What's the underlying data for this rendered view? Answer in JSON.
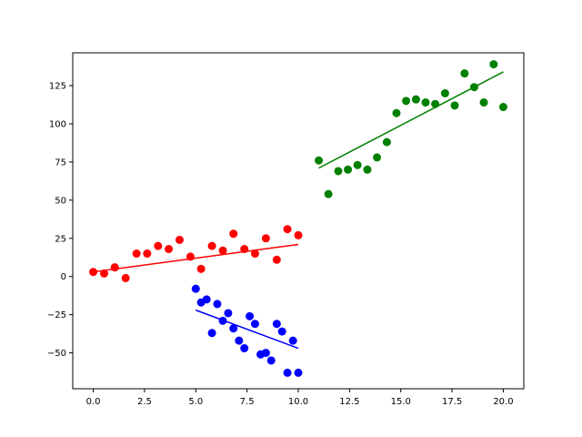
{
  "chart_data": {
    "type": "scatter",
    "title": "",
    "xlabel": "",
    "ylabel": "",
    "xlim": [
      -1.0,
      21.0
    ],
    "ylim": [
      -73.5,
      146.5
    ],
    "xticks": [
      0.0,
      2.5,
      5.0,
      7.5,
      10.0,
      12.5,
      15.0,
      17.5,
      20.0
    ],
    "xtick_labels": [
      "0.0",
      "2.5",
      "5.0",
      "7.5",
      "10.0",
      "12.5",
      "15.0",
      "17.5",
      "20.0"
    ],
    "yticks": [
      -50,
      -25,
      0,
      25,
      50,
      75,
      100,
      125
    ],
    "ytick_labels": [
      "−50",
      "−25",
      "0",
      "25",
      "50",
      "75",
      "100",
      "125"
    ],
    "grid": false,
    "series": [
      {
        "color": "#ff0000",
        "points": [
          [
            0.0,
            3
          ],
          [
            0.53,
            2
          ],
          [
            1.05,
            6
          ],
          [
            1.58,
            -1
          ],
          [
            2.11,
            15
          ],
          [
            2.63,
            15
          ],
          [
            3.16,
            20
          ],
          [
            3.68,
            18
          ],
          [
            4.21,
            24
          ],
          [
            4.74,
            13
          ],
          [
            5.26,
            5
          ],
          [
            5.79,
            20
          ],
          [
            6.32,
            17
          ],
          [
            6.84,
            28
          ],
          [
            7.37,
            18
          ],
          [
            7.89,
            15
          ],
          [
            8.42,
            25
          ],
          [
            8.95,
            11
          ],
          [
            9.47,
            31
          ],
          [
            10.0,
            27
          ]
        ],
        "fit": [
          [
            0.0,
            3
          ],
          [
            10.0,
            21
          ]
        ]
      },
      {
        "color": "#0000ff",
        "points": [
          [
            5.0,
            -8
          ],
          [
            5.26,
            -17
          ],
          [
            5.53,
            -15
          ],
          [
            5.79,
            -37
          ],
          [
            6.05,
            -18
          ],
          [
            6.32,
            -29
          ],
          [
            6.58,
            -24
          ],
          [
            6.84,
            -34
          ],
          [
            7.11,
            -42
          ],
          [
            7.37,
            -47
          ],
          [
            7.63,
            -26
          ],
          [
            7.89,
            -31
          ],
          [
            8.16,
            -51
          ],
          [
            8.42,
            -50
          ],
          [
            8.68,
            -55
          ],
          [
            8.95,
            -31
          ],
          [
            9.21,
            -36
          ],
          [
            9.47,
            -63
          ],
          [
            9.74,
            -42
          ],
          [
            10.0,
            -63
          ]
        ],
        "fit": [
          [
            5.0,
            -22
          ],
          [
            10.0,
            -47
          ]
        ]
      },
      {
        "color": "#008000",
        "points": [
          [
            11.0,
            76
          ],
          [
            11.47,
            54
          ],
          [
            11.95,
            69
          ],
          [
            12.42,
            70
          ],
          [
            12.89,
            73
          ],
          [
            13.37,
            70
          ],
          [
            13.84,
            78
          ],
          [
            14.32,
            88
          ],
          [
            14.79,
            107
          ],
          [
            15.26,
            115
          ],
          [
            15.74,
            116
          ],
          [
            16.21,
            114
          ],
          [
            16.68,
            113
          ],
          [
            17.16,
            120
          ],
          [
            17.63,
            112
          ],
          [
            18.11,
            133
          ],
          [
            18.58,
            124
          ],
          [
            19.05,
            114
          ],
          [
            19.53,
            139
          ],
          [
            20.0,
            111
          ]
        ],
        "fit": [
          [
            11.0,
            71
          ],
          [
            20.0,
            134
          ]
        ]
      }
    ]
  }
}
